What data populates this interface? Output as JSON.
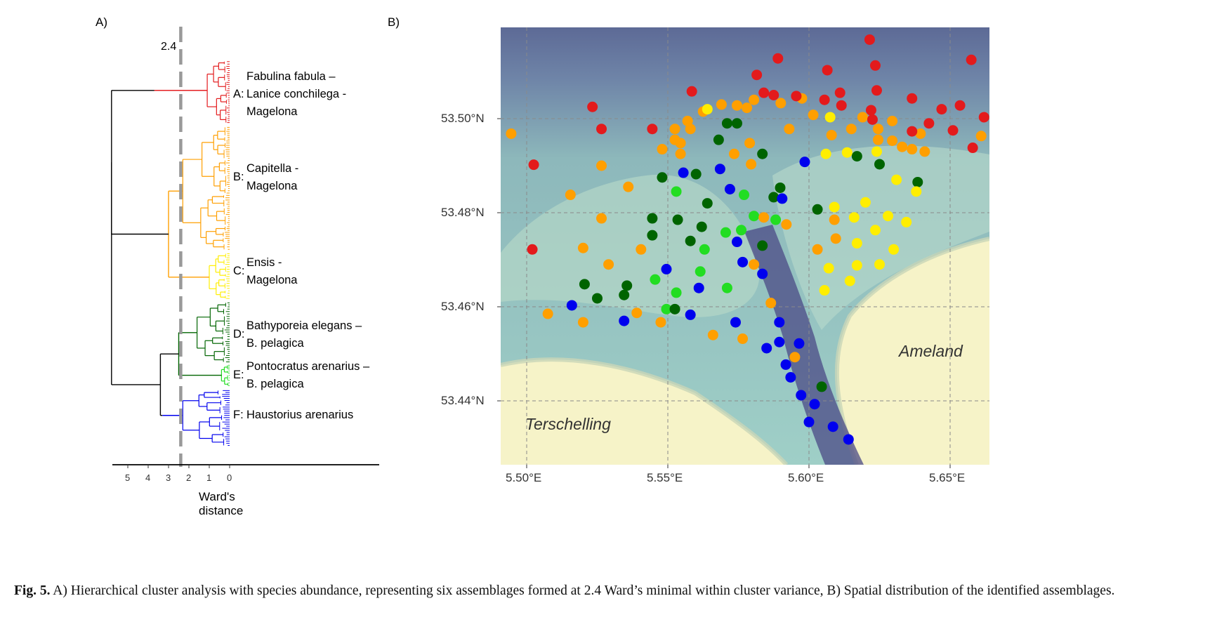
{
  "panel_a": {
    "letter": "A)",
    "cut_label": "2.4",
    "x_ticks": [
      "5",
      "4",
      "3",
      "2",
      "1",
      "0"
    ],
    "x_title": "Ward's distance",
    "clusters": [
      {
        "id": "A:",
        "lines": [
          "Fabulina fabula –",
          "Lanice conchilega -",
          "Magelona"
        ],
        "color": "#e31a1c"
      },
      {
        "id": "B:",
        "lines": [
          "Capitella -",
          "Magelona"
        ],
        "color": "#ff9f00"
      },
      {
        "id": "C:",
        "lines": [
          "Ensis -",
          "Magelona"
        ],
        "color": "#ffee00"
      },
      {
        "id": "D:",
        "lines": [
          "Bathyporeia elegans –",
          "B. pelagica"
        ],
        "color": "#006400"
      },
      {
        "id": "E:",
        "lines": [
          "Pontocratus arenarius –",
          "B. pelagica"
        ],
        "color": "#22dd22"
      },
      {
        "id": "F:",
        "lines": [
          "Haustorius arenarius"
        ],
        "color": "#0000ee"
      }
    ],
    "colors": {
      "A": "#e31a1c",
      "B": "#ff9f00",
      "C": "#ffee00",
      "D": "#006400",
      "E": "#22dd22",
      "F": "#0000ee",
      "cut": "#999999",
      "root": "#000000"
    }
  },
  "panel_b": {
    "letter": "B)",
    "lat_ticks": [
      "53.50°N",
      "53.48°N",
      "53.46°N",
      "53.44°N"
    ],
    "lon_ticks": [
      "5.50°E",
      "5.55°E",
      "5.60°E",
      "5.65°E"
    ],
    "places": {
      "west": "Terschelling",
      "east": "Ameland"
    },
    "samples": [
      {
        "lon": 5.4945,
        "lat": 53.4968,
        "c": "B"
      },
      {
        "lon": 5.5025,
        "lat": 53.4902,
        "c": "A"
      },
      {
        "lon": 5.5155,
        "lat": 53.4838,
        "c": "B"
      },
      {
        "lon": 5.5233,
        "lat": 53.5025,
        "c": "A"
      },
      {
        "lon": 5.5265,
        "lat": 53.4978,
        "c": "A"
      },
      {
        "lon": 5.5265,
        "lat": 53.49,
        "c": "B"
      },
      {
        "lon": 5.5265,
        "lat": 53.4788,
        "c": "B"
      },
      {
        "lon": 5.536,
        "lat": 53.4855,
        "c": "B"
      },
      {
        "lon": 5.502,
        "lat": 53.4722,
        "c": "A"
      },
      {
        "lon": 5.52,
        "lat": 53.4725,
        "c": "B"
      },
      {
        "lon": 5.529,
        "lat": 53.469,
        "c": "B"
      },
      {
        "lon": 5.5405,
        "lat": 53.4722,
        "c": "B"
      },
      {
        "lon": 5.5205,
        "lat": 53.4648,
        "c": "D"
      },
      {
        "lon": 5.525,
        "lat": 53.4618,
        "c": "D"
      },
      {
        "lon": 5.5355,
        "lat": 53.4645,
        "c": "D"
      },
      {
        "lon": 5.5345,
        "lat": 53.4625,
        "c": "D"
      },
      {
        "lon": 5.5075,
        "lat": 53.4585,
        "c": "B"
      },
      {
        "lon": 5.516,
        "lat": 53.4603,
        "c": "F"
      },
      {
        "lon": 5.52,
        "lat": 53.4567,
        "c": "B"
      },
      {
        "lon": 5.5345,
        "lat": 53.457,
        "c": "F"
      },
      {
        "lon": 5.539,
        "lat": 53.4587,
        "c": "B"
      },
      {
        "lon": 5.5475,
        "lat": 53.4567,
        "c": "B"
      },
      {
        "lon": 5.5455,
        "lat": 53.4658,
        "c": "E"
      },
      {
        "lon": 5.5495,
        "lat": 53.468,
        "c": "F"
      },
      {
        "lon": 5.5495,
        "lat": 53.4595,
        "c": "E"
      },
      {
        "lon": 5.5525,
        "lat": 53.4595,
        "c": "D"
      },
      {
        "lon": 5.553,
        "lat": 53.463,
        "c": "E"
      },
      {
        "lon": 5.558,
        "lat": 53.4583,
        "c": "F"
      },
      {
        "lon": 5.561,
        "lat": 53.464,
        "c": "F"
      },
      {
        "lon": 5.5615,
        "lat": 53.4675,
        "c": "E"
      },
      {
        "lon": 5.563,
        "lat": 53.4722,
        "c": "E"
      },
      {
        "lon": 5.571,
        "lat": 53.464,
        "c": "E"
      },
      {
        "lon": 5.566,
        "lat": 53.454,
        "c": "B"
      },
      {
        "lon": 5.574,
        "lat": 53.4567,
        "c": "F"
      },
      {
        "lon": 5.5765,
        "lat": 53.4532,
        "c": "B"
      },
      {
        "lon": 5.5765,
        "lat": 53.4695,
        "c": "F"
      },
      {
        "lon": 5.5805,
        "lat": 53.469,
        "c": "B"
      },
      {
        "lon": 5.5835,
        "lat": 53.467,
        "c": "F"
      },
      {
        "lon": 5.5865,
        "lat": 53.4608,
        "c": "B"
      },
      {
        "lon": 5.5895,
        "lat": 53.4567,
        "c": "F"
      },
      {
        "lon": 5.5895,
        "lat": 53.4525,
        "c": "F"
      },
      {
        "lon": 5.585,
        "lat": 53.4512,
        "c": "F"
      },
      {
        "lon": 5.5965,
        "lat": 53.4522,
        "c": "F"
      },
      {
        "lon": 5.595,
        "lat": 53.4493,
        "c": "B"
      },
      {
        "lon": 5.5918,
        "lat": 53.4477,
        "c": "F"
      },
      {
        "lon": 5.5935,
        "lat": 53.445,
        "c": "F"
      },
      {
        "lon": 5.5972,
        "lat": 53.4412,
        "c": "F"
      },
      {
        "lon": 5.6045,
        "lat": 53.443,
        "c": "D"
      },
      {
        "lon": 5.602,
        "lat": 53.4393,
        "c": "F"
      },
      {
        "lon": 5.6,
        "lat": 53.4355,
        "c": "F"
      },
      {
        "lon": 5.6085,
        "lat": 53.4345,
        "c": "F"
      },
      {
        "lon": 5.614,
        "lat": 53.4318,
        "c": "F"
      },
      {
        "lon": 5.548,
        "lat": 53.4875,
        "c": "D"
      },
      {
        "lon": 5.5555,
        "lat": 53.4885,
        "c": "F"
      },
      {
        "lon": 5.56,
        "lat": 53.4882,
        "c": "D"
      },
      {
        "lon": 5.5685,
        "lat": 53.4893,
        "c": "F"
      },
      {
        "lon": 5.553,
        "lat": 53.4845,
        "c": "E"
      },
      {
        "lon": 5.564,
        "lat": 53.482,
        "c": "D"
      },
      {
        "lon": 5.572,
        "lat": 53.485,
        "c": "F"
      },
      {
        "lon": 5.577,
        "lat": 53.4838,
        "c": "E"
      },
      {
        "lon": 5.5445,
        "lat": 53.4788,
        "c": "D"
      },
      {
        "lon": 5.5535,
        "lat": 53.4785,
        "c": "D"
      },
      {
        "lon": 5.5445,
        "lat": 53.4752,
        "c": "D"
      },
      {
        "lon": 5.558,
        "lat": 53.474,
        "c": "D"
      },
      {
        "lon": 5.562,
        "lat": 53.477,
        "c": "D"
      },
      {
        "lon": 5.5705,
        "lat": 53.4758,
        "c": "E"
      },
      {
        "lon": 5.5745,
        "lat": 53.4738,
        "c": "F"
      },
      {
        "lon": 5.576,
        "lat": 53.4763,
        "c": "E"
      },
      {
        "lon": 5.5805,
        "lat": 53.4793,
        "c": "E"
      },
      {
        "lon": 5.584,
        "lat": 53.479,
        "c": "B"
      },
      {
        "lon": 5.5835,
        "lat": 53.473,
        "c": "D"
      },
      {
        "lon": 5.5882,
        "lat": 53.4785,
        "c": "E"
      },
      {
        "lon": 5.592,
        "lat": 53.4775,
        "c": "B"
      },
      {
        "lon": 5.5875,
        "lat": 53.4833,
        "c": "D"
      },
      {
        "lon": 5.5898,
        "lat": 53.4853,
        "c": "D"
      },
      {
        "lon": 5.5905,
        "lat": 53.483,
        "c": "F"
      },
      {
        "lon": 5.5985,
        "lat": 53.4908,
        "c": "F"
      },
      {
        "lon": 5.603,
        "lat": 53.4807,
        "c": "D"
      },
      {
        "lon": 5.568,
        "lat": 53.4955,
        "c": "D"
      },
      {
        "lon": 5.5745,
        "lat": 53.499,
        "c": "D"
      },
      {
        "lon": 5.571,
        "lat": 53.499,
        "c": "D"
      },
      {
        "lon": 5.5835,
        "lat": 53.4925,
        "c": "D"
      },
      {
        "lon": 5.579,
        "lat": 53.4948,
        "c": "B"
      },
      {
        "lon": 5.5735,
        "lat": 53.4925,
        "c": "B"
      },
      {
        "lon": 5.5795,
        "lat": 53.4903,
        "c": "B"
      },
      {
        "lon": 5.593,
        "lat": 53.4978,
        "c": "B"
      },
      {
        "lon": 5.617,
        "lat": 53.492,
        "c": "D"
      },
      {
        "lon": 5.625,
        "lat": 53.4903,
        "c": "D"
      },
      {
        "lon": 5.6385,
        "lat": 53.4865,
        "c": "D"
      },
      {
        "lon": 5.606,
        "lat": 53.4925,
        "c": "C"
      },
      {
        "lon": 5.6135,
        "lat": 53.4928,
        "c": "C"
      },
      {
        "lon": 5.624,
        "lat": 53.493,
        "c": "C"
      },
      {
        "lon": 5.631,
        "lat": 53.487,
        "c": "C"
      },
      {
        "lon": 5.638,
        "lat": 53.4845,
        "c": "C"
      },
      {
        "lon": 5.609,
        "lat": 53.4812,
        "c": "C"
      },
      {
        "lon": 5.62,
        "lat": 53.4822,
        "c": "C"
      },
      {
        "lon": 5.616,
        "lat": 53.479,
        "c": "C"
      },
      {
        "lon": 5.628,
        "lat": 53.4793,
        "c": "C"
      },
      {
        "lon": 5.6345,
        "lat": 53.478,
        "c": "C"
      },
      {
        "lon": 5.6235,
        "lat": 53.4763,
        "c": "C"
      },
      {
        "lon": 5.617,
        "lat": 53.4735,
        "c": "C"
      },
      {
        "lon": 5.63,
        "lat": 53.4722,
        "c": "C"
      },
      {
        "lon": 5.607,
        "lat": 53.4682,
        "c": "C"
      },
      {
        "lon": 5.617,
        "lat": 53.4688,
        "c": "C"
      },
      {
        "lon": 5.625,
        "lat": 53.469,
        "c": "C"
      },
      {
        "lon": 5.6055,
        "lat": 53.4635,
        "c": "C"
      },
      {
        "lon": 5.6145,
        "lat": 53.4655,
        "c": "C"
      },
      {
        "lon": 5.603,
        "lat": 53.4722,
        "c": "B"
      },
      {
        "lon": 5.6095,
        "lat": 53.4745,
        "c": "B"
      },
      {
        "lon": 5.609,
        "lat": 53.4785,
        "c": "B"
      },
      {
        "lon": 5.6015,
        "lat": 53.5008,
        "c": "B"
      },
      {
        "lon": 5.608,
        "lat": 53.4965,
        "c": "B"
      },
      {
        "lon": 5.615,
        "lat": 53.4978,
        "c": "B"
      },
      {
        "lon": 5.6075,
        "lat": 53.5003,
        "c": "C"
      },
      {
        "lon": 5.619,
        "lat": 53.5003,
        "c": "B"
      },
      {
        "lon": 5.6245,
        "lat": 53.4978,
        "c": "B"
      },
      {
        "lon": 5.6245,
        "lat": 53.4955,
        "c": "B"
      },
      {
        "lon": 5.6295,
        "lat": 53.4953,
        "c": "B"
      },
      {
        "lon": 5.633,
        "lat": 53.494,
        "c": "B"
      },
      {
        "lon": 5.6365,
        "lat": 53.4935,
        "c": "B"
      },
      {
        "lon": 5.6395,
        "lat": 53.4968,
        "c": "B"
      },
      {
        "lon": 5.641,
        "lat": 53.493,
        "c": "B"
      },
      {
        "lon": 5.6295,
        "lat": 53.4995,
        "c": "B"
      },
      {
        "lon": 5.5625,
        "lat": 53.5015,
        "c": "B"
      },
      {
        "lon": 5.564,
        "lat": 53.502,
        "c": "C"
      },
      {
        "lon": 5.569,
        "lat": 53.503,
        "c": "B"
      },
      {
        "lon": 5.5745,
        "lat": 53.5028,
        "c": "B"
      },
      {
        "lon": 5.5805,
        "lat": 53.504,
        "c": "B"
      },
      {
        "lon": 5.578,
        "lat": 53.5023,
        "c": "B"
      },
      {
        "lon": 5.557,
        "lat": 53.4995,
        "c": "B"
      },
      {
        "lon": 5.558,
        "lat": 53.4978,
        "c": "B"
      },
      {
        "lon": 5.5525,
        "lat": 53.4978,
        "c": "B"
      },
      {
        "lon": 5.5525,
        "lat": 53.4955,
        "c": "B"
      },
      {
        "lon": 5.548,
        "lat": 53.4935,
        "c": "B"
      },
      {
        "lon": 5.5545,
        "lat": 53.4948,
        "c": "B"
      },
      {
        "lon": 5.5545,
        "lat": 53.4925,
        "c": "B"
      },
      {
        "lon": 5.59,
        "lat": 53.5033,
        "c": "B"
      },
      {
        "lon": 5.5975,
        "lat": 53.5043,
        "c": "B"
      },
      {
        "lon": 5.5445,
        "lat": 53.4978,
        "c": "A"
      },
      {
        "lon": 5.5585,
        "lat": 53.5058,
        "c": "A"
      },
      {
        "lon": 5.5815,
        "lat": 53.5093,
        "c": "A"
      },
      {
        "lon": 5.589,
        "lat": 53.5128,
        "c": "A"
      },
      {
        "lon": 5.584,
        "lat": 53.5055,
        "c": "A"
      },
      {
        "lon": 5.5875,
        "lat": 53.505,
        "c": "A"
      },
      {
        "lon": 5.5955,
        "lat": 53.5048,
        "c": "A"
      },
      {
        "lon": 5.6055,
        "lat": 53.504,
        "c": "A"
      },
      {
        "lon": 5.6065,
        "lat": 53.5103,
        "c": "A"
      },
      {
        "lon": 5.611,
        "lat": 53.5055,
        "c": "A"
      },
      {
        "lon": 5.6115,
        "lat": 53.5028,
        "c": "A"
      },
      {
        "lon": 5.6215,
        "lat": 53.5168,
        "c": "A"
      },
      {
        "lon": 5.6235,
        "lat": 53.5113,
        "c": "A"
      },
      {
        "lon": 5.624,
        "lat": 53.506,
        "c": "A"
      },
      {
        "lon": 5.622,
        "lat": 53.5018,
        "c": "A"
      },
      {
        "lon": 5.6225,
        "lat": 53.4998,
        "c": "A"
      },
      {
        "lon": 5.6365,
        "lat": 53.5043,
        "c": "A"
      },
      {
        "lon": 5.6365,
        "lat": 53.4973,
        "c": "A"
      },
      {
        "lon": 5.6425,
        "lat": 53.499,
        "c": "A"
      },
      {
        "lon": 5.647,
        "lat": 53.502,
        "c": "A"
      },
      {
        "lon": 5.6535,
        "lat": 53.5028,
        "c": "A"
      },
      {
        "lon": 5.651,
        "lat": 53.4975,
        "c": "A"
      },
      {
        "lon": 5.6575,
        "lat": 53.5125,
        "c": "A"
      },
      {
        "lon": 5.658,
        "lat": 53.4938,
        "c": "A"
      },
      {
        "lon": 5.662,
        "lat": 53.5003,
        "c": "A"
      },
      {
        "lon": 5.661,
        "lat": 53.4963,
        "c": "B"
      }
    ]
  },
  "caption": {
    "label": "Fig. 5.",
    "text": " A) Hierarchical cluster analysis with species abundance, representing six assemblages formed at 2.4 Ward’s minimal within cluster variance, B) Spatial distribution of the identified assemblages."
  }
}
